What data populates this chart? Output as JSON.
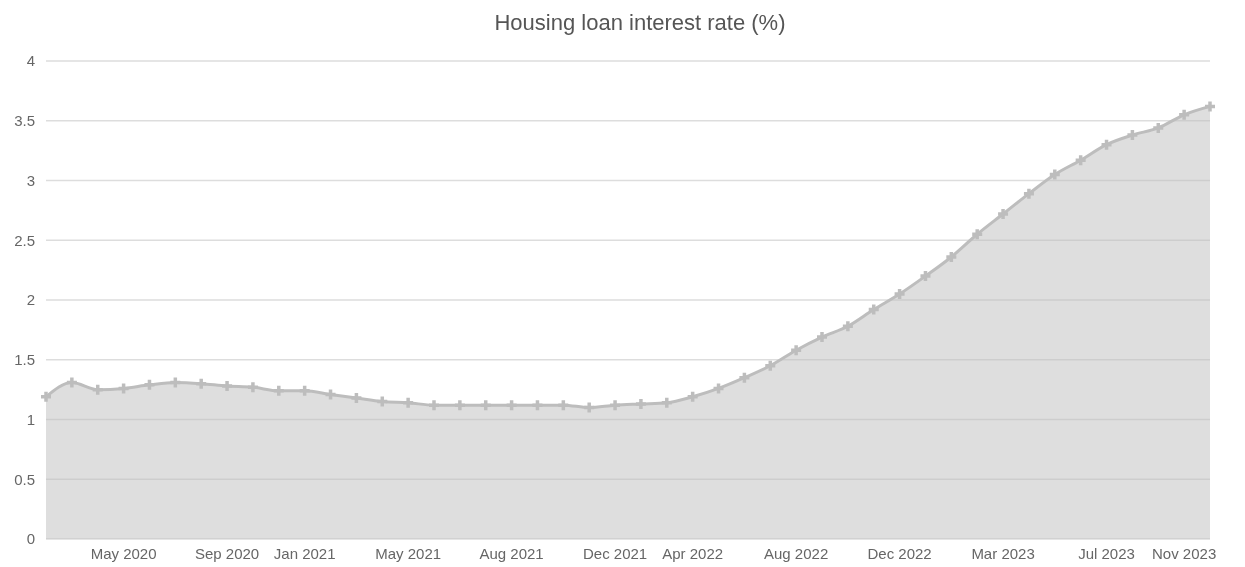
{
  "chart_data": {
    "type": "area",
    "title": "Housing loan interest rate (%)",
    "categories": [
      null,
      null,
      null,
      "May 2020",
      null,
      null,
      null,
      "Sep 2020",
      null,
      null,
      "Jan 2021",
      null,
      null,
      null,
      "May 2021",
      null,
      null,
      null,
      "Aug 2021",
      null,
      null,
      null,
      "Dec 2021",
      null,
      null,
      "Apr 2022",
      null,
      null,
      null,
      "Aug 2022",
      null,
      null,
      null,
      "Dec 2022",
      null,
      null,
      null,
      "Mar 2023",
      null,
      null,
      null,
      "Jul 2023",
      null,
      null,
      "Nov 2023",
      null
    ],
    "series": [
      {
        "color": "#bdbdbd",
        "values": [
          1.19,
          1.31,
          1.25,
          1.26,
          1.29,
          1.31,
          1.3,
          1.28,
          1.27,
          1.24,
          1.24,
          1.21,
          1.18,
          1.15,
          1.14,
          1.12,
          1.12,
          1.12,
          1.12,
          1.12,
          1.12,
          1.1,
          1.12,
          1.13,
          1.14,
          1.19,
          1.26,
          1.35,
          1.45,
          1.58,
          1.69,
          1.78,
          1.92,
          2.05,
          2.2,
          2.36,
          2.55,
          2.72,
          2.89,
          3.05,
          3.17,
          3.3,
          3.38,
          3.44,
          3.55,
          3.62
        ]
      }
    ],
    "ylim": [
      0,
      4
    ],
    "yticks": [
      0,
      0.5,
      1,
      1.5,
      2,
      2.5,
      3,
      3.5,
      4
    ],
    "grid": "y",
    "marker": "cross"
  }
}
